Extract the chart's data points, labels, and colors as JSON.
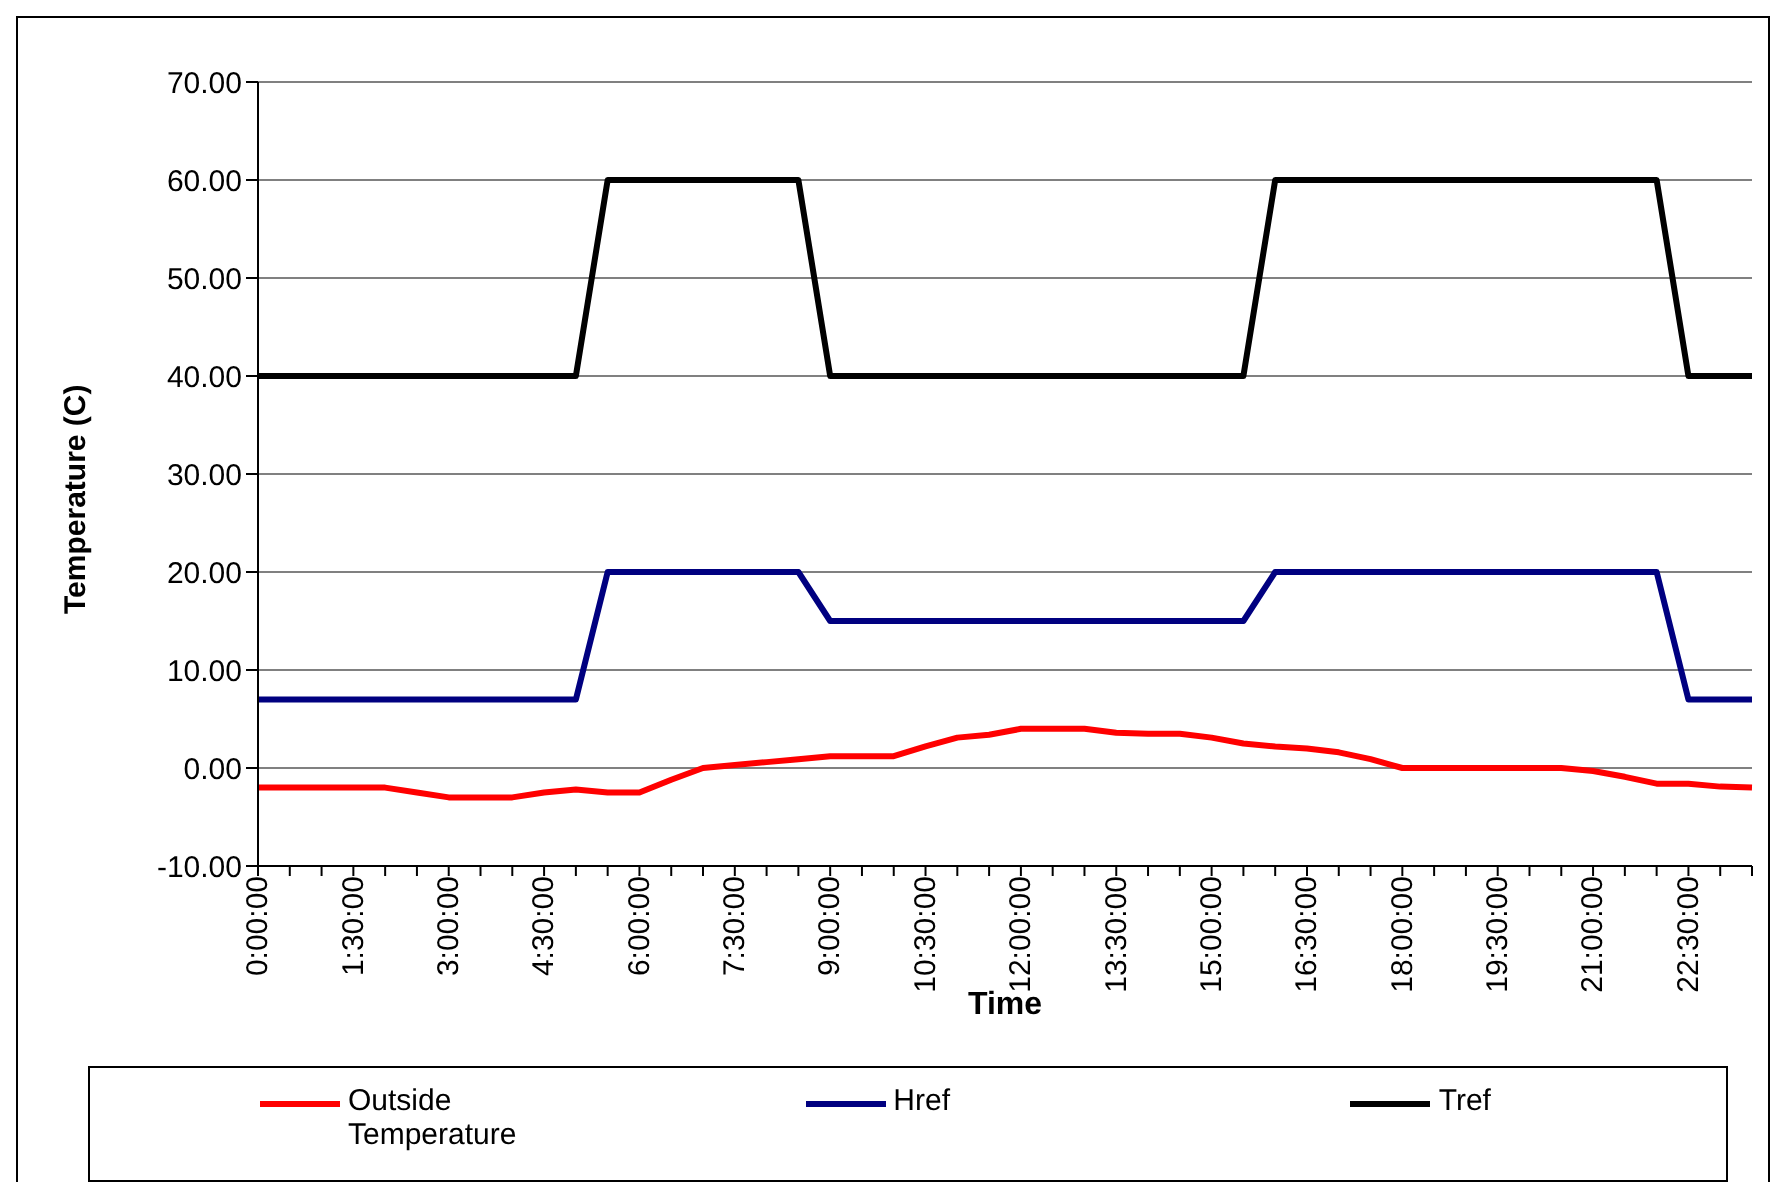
{
  "chart_data": {
    "type": "line",
    "xlabel": "Time",
    "ylabel": "Temperature (C)",
    "categories": [
      "0:00:00",
      null,
      null,
      "1:30:00",
      null,
      null,
      "3:00:00",
      null,
      null,
      "4:30:00",
      null,
      null,
      "6:00:00",
      null,
      null,
      "7:30:00",
      null,
      null,
      "9:00:00",
      null,
      null,
      "10:30:00",
      null,
      null,
      "12:00:00",
      null,
      null,
      "13:30:00",
      null,
      null,
      "15:00:00",
      null,
      null,
      "16:30:00",
      null,
      null,
      "18:00:00",
      null,
      null,
      "19:30:00",
      null,
      null,
      "21:00:00",
      null,
      null,
      "22:30:00",
      null,
      null
    ],
    "series": [
      {
        "name": "Outside Temperature",
        "color": "#ff0000",
        "values": [
          -2,
          -2,
          -2,
          -2,
          -2,
          -2.5,
          -3,
          -3,
          -3,
          -2.5,
          -2.2,
          -2.5,
          -2.5,
          -1.2,
          0,
          0.3,
          0.6,
          0.9,
          1.2,
          1.2,
          1.2,
          2.2,
          3.1,
          3.4,
          4,
          4,
          4,
          3.6,
          3.5,
          3.5,
          3.1,
          2.5,
          2.2,
          2,
          1.6,
          0.9,
          0,
          0,
          0,
          0,
          0,
          0,
          -0.3,
          -0.9,
          -1.6,
          -1.6,
          -1.9,
          -2
        ]
      },
      {
        "name": "Href",
        "color": "#000080",
        "values": [
          7,
          7,
          7,
          7,
          7,
          7,
          7,
          7,
          7,
          7,
          7,
          20,
          20,
          20,
          20,
          20,
          20,
          20,
          15,
          15,
          15,
          15,
          15,
          15,
          15,
          15,
          15,
          15,
          15,
          15,
          15,
          15,
          20,
          20,
          20,
          20,
          20,
          20,
          20,
          20,
          20,
          20,
          20,
          20,
          20,
          7,
          7,
          7
        ]
      },
      {
        "name": "Tref",
        "color": "#000000",
        "values": [
          40,
          40,
          40,
          40,
          40,
          40,
          40,
          40,
          40,
          40,
          40,
          60,
          60,
          60,
          60,
          60,
          60,
          60,
          40,
          40,
          40,
          40,
          40,
          40,
          40,
          40,
          40,
          40,
          40,
          40,
          40,
          40,
          60,
          60,
          60,
          60,
          60,
          60,
          60,
          60,
          60,
          60,
          60,
          60,
          60,
          40,
          40,
          40
        ]
      }
    ],
    "ylim": [
      -10,
      70
    ],
    "yticks": [
      {
        "value": -10,
        "label": "-10.00"
      },
      {
        "value": 0,
        "label": "0.00"
      },
      {
        "value": 10,
        "label": "10.00"
      },
      {
        "value": 20,
        "label": "20.00"
      },
      {
        "value": 30,
        "label": "30.00"
      },
      {
        "value": 40,
        "label": "40.00"
      },
      {
        "value": 50,
        "label": "50.00"
      },
      {
        "value": 60,
        "label": "60.00"
      },
      {
        "value": 70,
        "label": "70.00"
      }
    ],
    "grid": "y",
    "legend": "bottom",
    "marker": "none",
    "line_style": "solid"
  }
}
